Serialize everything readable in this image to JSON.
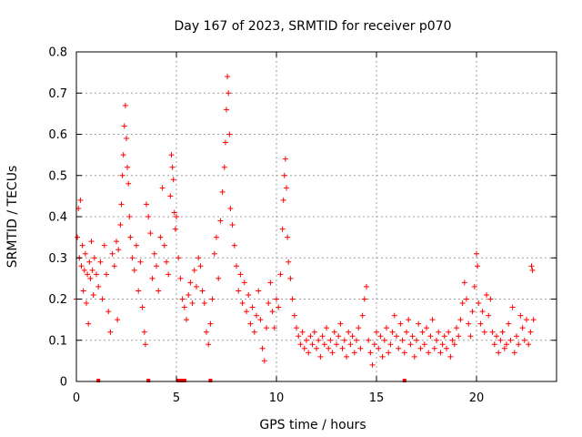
{
  "chart_data": {
    "type": "scatter",
    "title": "Day 167 of 2023, SRMTID for receiver p070",
    "xlabel": "GPS time / hours",
    "ylabel": "SRMTID / TECUs",
    "xlim": [
      0,
      24
    ],
    "ylim": [
      0,
      0.8
    ],
    "xticks": [
      0,
      5,
      10,
      15,
      20
    ],
    "xtick_labels": [
      "0",
      "5",
      "10",
      "15",
      "20"
    ],
    "yticks": [
      0,
      0.1,
      0.2,
      0.3,
      0.4,
      0.5,
      0.6,
      0.7,
      0.8
    ],
    "ytick_labels": [
      "0",
      "0.1",
      "0.2",
      "0.3",
      "0.4",
      "0.5",
      "0.6",
      "0.7",
      "0.8"
    ],
    "grid": true,
    "marker": "plus",
    "color": "#ff0000",
    "series": [
      {
        "name": "SRMTID",
        "points": [
          [
            0.0,
            0.2
          ],
          [
            0.05,
            0.35
          ],
          [
            0.1,
            0.42
          ],
          [
            0.15,
            0.3
          ],
          [
            0.2,
            0.44
          ],
          [
            0.25,
            0.28
          ],
          [
            0.3,
            0.33
          ],
          [
            0.35,
            0.22
          ],
          [
            0.4,
            0.27
          ],
          [
            0.45,
            0.31
          ],
          [
            0.5,
            0.19
          ],
          [
            0.55,
            0.26
          ],
          [
            0.6,
            0.14
          ],
          [
            0.65,
            0.29
          ],
          [
            0.7,
            0.25
          ],
          [
            0.75,
            0.34
          ],
          [
            0.8,
            0.27
          ],
          [
            0.85,
            0.21
          ],
          [
            0.9,
            0.3
          ],
          [
            1.0,
            0.26
          ],
          [
            1.1,
            0.23
          ],
          [
            1.2,
            0.29
          ],
          [
            1.3,
            0.2
          ],
          [
            1.4,
            0.33
          ],
          [
            1.5,
            0.26
          ],
          [
            1.6,
            0.17
          ],
          [
            1.7,
            0.12
          ],
          [
            1.8,
            0.31
          ],
          [
            1.9,
            0.28
          ],
          [
            2.0,
            0.34
          ],
          [
            2.05,
            0.15
          ],
          [
            2.1,
            0.32
          ],
          [
            2.2,
            0.38
          ],
          [
            2.25,
            0.43
          ],
          [
            2.3,
            0.5
          ],
          [
            2.35,
            0.55
          ],
          [
            2.4,
            0.62
          ],
          [
            2.45,
            0.67
          ],
          [
            2.5,
            0.59
          ],
          [
            2.55,
            0.52
          ],
          [
            2.6,
            0.48
          ],
          [
            2.65,
            0.4
          ],
          [
            2.7,
            0.35
          ],
          [
            2.8,
            0.3
          ],
          [
            2.9,
            0.27
          ],
          [
            3.0,
            0.33
          ],
          [
            3.1,
            0.22
          ],
          [
            3.2,
            0.29
          ],
          [
            3.3,
            0.18
          ],
          [
            3.4,
            0.12
          ],
          [
            3.45,
            0.09
          ],
          [
            3.5,
            0.43
          ],
          [
            3.6,
            0.4
          ],
          [
            3.7,
            0.36
          ],
          [
            3.8,
            0.25
          ],
          [
            3.9,
            0.31
          ],
          [
            4.0,
            0.28
          ],
          [
            4.1,
            0.22
          ],
          [
            4.2,
            0.35
          ],
          [
            4.3,
            0.47
          ],
          [
            4.4,
            0.33
          ],
          [
            4.5,
            0.29
          ],
          [
            4.6,
            0.26
          ],
          [
            4.7,
            0.45
          ],
          [
            4.75,
            0.55
          ],
          [
            4.8,
            0.52
          ],
          [
            4.85,
            0.49
          ],
          [
            4.9,
            0.41
          ],
          [
            4.95,
            0.37
          ],
          [
            5.0,
            0.4
          ],
          [
            5.1,
            0.3
          ],
          [
            5.2,
            0.25
          ],
          [
            5.3,
            0.2
          ],
          [
            5.4,
            0.18
          ],
          [
            5.5,
            0.15
          ],
          [
            5.6,
            0.21
          ],
          [
            5.7,
            0.24
          ],
          [
            5.8,
            0.19
          ],
          [
            5.9,
            0.27
          ],
          [
            6.0,
            0.23
          ],
          [
            6.1,
            0.3
          ],
          [
            6.2,
            0.28
          ],
          [
            6.3,
            0.22
          ],
          [
            6.4,
            0.19
          ],
          [
            6.5,
            0.12
          ],
          [
            6.6,
            0.09
          ],
          [
            6.7,
            0.14
          ],
          [
            6.8,
            0.2
          ],
          [
            6.9,
            0.31
          ],
          [
            7.0,
            0.35
          ],
          [
            7.1,
            0.25
          ],
          [
            7.2,
            0.39
          ],
          [
            7.3,
            0.46
          ],
          [
            7.4,
            0.52
          ],
          [
            7.45,
            0.58
          ],
          [
            7.5,
            0.66
          ],
          [
            7.55,
            0.74
          ],
          [
            7.6,
            0.7
          ],
          [
            7.65,
            0.6
          ],
          [
            7.7,
            0.42
          ],
          [
            7.8,
            0.38
          ],
          [
            7.9,
            0.33
          ],
          [
            8.0,
            0.28
          ],
          [
            8.1,
            0.22
          ],
          [
            8.2,
            0.26
          ],
          [
            8.3,
            0.19
          ],
          [
            8.4,
            0.24
          ],
          [
            8.5,
            0.17
          ],
          [
            8.6,
            0.21
          ],
          [
            8.7,
            0.14
          ],
          [
            8.8,
            0.18
          ],
          [
            8.9,
            0.12
          ],
          [
            9.0,
            0.16
          ],
          [
            9.1,
            0.22
          ],
          [
            9.2,
            0.15
          ],
          [
            9.3,
            0.08
          ],
          [
            9.4,
            0.05
          ],
          [
            9.5,
            0.13
          ],
          [
            9.6,
            0.19
          ],
          [
            9.7,
            0.24
          ],
          [
            9.8,
            0.17
          ],
          [
            9.9,
            0.13
          ],
          [
            10.0,
            0.2
          ],
          [
            10.1,
            0.18
          ],
          [
            10.2,
            0.26
          ],
          [
            10.3,
            0.37
          ],
          [
            10.35,
            0.44
          ],
          [
            10.4,
            0.5
          ],
          [
            10.45,
            0.54
          ],
          [
            10.5,
            0.47
          ],
          [
            10.55,
            0.35
          ],
          [
            10.6,
            0.29
          ],
          [
            10.7,
            0.25
          ],
          [
            10.8,
            0.2
          ],
          [
            10.9,
            0.16
          ],
          [
            11.0,
            0.13
          ],
          [
            11.1,
            0.11
          ],
          [
            11.2,
            0.09
          ],
          [
            11.3,
            0.12
          ],
          [
            11.4,
            0.08
          ],
          [
            11.5,
            0.1
          ],
          [
            11.6,
            0.07
          ],
          [
            11.7,
            0.11
          ],
          [
            11.8,
            0.09
          ],
          [
            11.9,
            0.12
          ],
          [
            12.0,
            0.08
          ],
          [
            12.1,
            0.1
          ],
          [
            12.2,
            0.06
          ],
          [
            12.3,
            0.11
          ],
          [
            12.4,
            0.09
          ],
          [
            12.5,
            0.13
          ],
          [
            12.6,
            0.08
          ],
          [
            12.7,
            0.1
          ],
          [
            12.8,
            0.07
          ],
          [
            12.9,
            0.12
          ],
          [
            13.0,
            0.09
          ],
          [
            13.1,
            0.11
          ],
          [
            13.2,
            0.14
          ],
          [
            13.3,
            0.08
          ],
          [
            13.4,
            0.1
          ],
          [
            13.5,
            0.06
          ],
          [
            13.6,
            0.12
          ],
          [
            13.7,
            0.09
          ],
          [
            13.8,
            0.11
          ],
          [
            13.9,
            0.07
          ],
          [
            14.0,
            0.1
          ],
          [
            14.1,
            0.13
          ],
          [
            14.2,
            0.08
          ],
          [
            14.3,
            0.16
          ],
          [
            14.4,
            0.2
          ],
          [
            14.5,
            0.23
          ],
          [
            14.6,
            0.1
          ],
          [
            14.7,
            0.07
          ],
          [
            14.8,
            0.04
          ],
          [
            14.9,
            0.09
          ],
          [
            15.0,
            0.12
          ],
          [
            15.1,
            0.08
          ],
          [
            15.2,
            0.11
          ],
          [
            15.3,
            0.06
          ],
          [
            15.4,
            0.1
          ],
          [
            15.5,
            0.13
          ],
          [
            15.6,
            0.07
          ],
          [
            15.7,
            0.09
          ],
          [
            15.8,
            0.12
          ],
          [
            15.9,
            0.16
          ],
          [
            16.0,
            0.11
          ],
          [
            16.1,
            0.08
          ],
          [
            16.2,
            0.14
          ],
          [
            16.3,
            0.1
          ],
          [
            16.4,
            0.07
          ],
          [
            16.5,
            0.12
          ],
          [
            16.6,
            0.15
          ],
          [
            16.7,
            0.09
          ],
          [
            16.8,
            0.11
          ],
          [
            16.9,
            0.06
          ],
          [
            17.0,
            0.1
          ],
          [
            17.1,
            0.14
          ],
          [
            17.2,
            0.08
          ],
          [
            17.3,
            0.12
          ],
          [
            17.4,
            0.09
          ],
          [
            17.5,
            0.13
          ],
          [
            17.6,
            0.07
          ],
          [
            17.7,
            0.11
          ],
          [
            17.8,
            0.15
          ],
          [
            17.9,
            0.08
          ],
          [
            18.0,
            0.1
          ],
          [
            18.1,
            0.12
          ],
          [
            18.2,
            0.07
          ],
          [
            18.3,
            0.09
          ],
          [
            18.4,
            0.11
          ],
          [
            18.5,
            0.08
          ],
          [
            18.6,
            0.12
          ],
          [
            18.7,
            0.06
          ],
          [
            18.8,
            0.1
          ],
          [
            18.9,
            0.09
          ],
          [
            19.0,
            0.13
          ],
          [
            19.1,
            0.11
          ],
          [
            19.2,
            0.15
          ],
          [
            19.3,
            0.19
          ],
          [
            19.4,
            0.24
          ],
          [
            19.5,
            0.2
          ],
          [
            19.6,
            0.14
          ],
          [
            19.7,
            0.11
          ],
          [
            19.8,
            0.17
          ],
          [
            19.9,
            0.23
          ],
          [
            20.0,
            0.31
          ],
          [
            20.05,
            0.28
          ],
          [
            20.1,
            0.19
          ],
          [
            20.2,
            0.14
          ],
          [
            20.3,
            0.17
          ],
          [
            20.4,
            0.12
          ],
          [
            20.5,
            0.21
          ],
          [
            20.6,
            0.16
          ],
          [
            20.7,
            0.2
          ],
          [
            20.8,
            0.12
          ],
          [
            20.9,
            0.09
          ],
          [
            21.0,
            0.11
          ],
          [
            21.1,
            0.07
          ],
          [
            21.2,
            0.1
          ],
          [
            21.3,
            0.12
          ],
          [
            21.4,
            0.08
          ],
          [
            21.5,
            0.09
          ],
          [
            21.6,
            0.14
          ],
          [
            21.7,
            0.1
          ],
          [
            21.8,
            0.18
          ],
          [
            21.9,
            0.07
          ],
          [
            22.0,
            0.11
          ],
          [
            22.1,
            0.09
          ],
          [
            22.2,
            0.16
          ],
          [
            22.3,
            0.13
          ],
          [
            22.4,
            0.1
          ],
          [
            22.5,
            0.15
          ],
          [
            22.6,
            0.09
          ],
          [
            22.7,
            0.12
          ],
          [
            22.75,
            0.28
          ],
          [
            22.8,
            0.27
          ],
          [
            22.85,
            0.15
          ]
        ]
      }
    ],
    "rug_markers_x": [
      1.1,
      3.6,
      5.1,
      5.2,
      5.3,
      5.4,
      6.7,
      16.4
    ]
  }
}
